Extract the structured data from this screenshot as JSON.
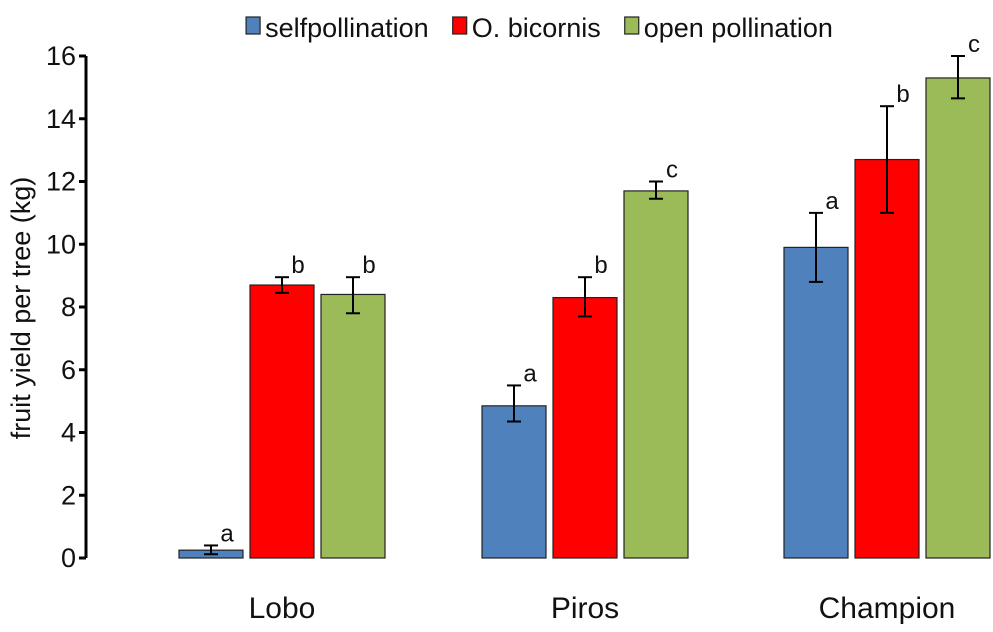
{
  "chart_data": {
    "type": "bar",
    "title": "",
    "xlabel": "",
    "ylabel": "fruit yield per tree (kg)",
    "ylim": [
      0,
      16
    ],
    "yticks": [
      0,
      2,
      4,
      6,
      8,
      10,
      12,
      14,
      16
    ],
    "grid": false,
    "legend_position": "top",
    "categories": [
      "Lobo",
      "Piros",
      "Champion"
    ],
    "series": [
      {
        "name": "selfpollination",
        "color": "#4f81bd",
        "values": [
          0.25,
          4.85,
          9.9
        ],
        "error_low": [
          0.12,
          4.35,
          8.8
        ],
        "error_high": [
          0.4,
          5.5,
          11.0
        ],
        "letters": [
          "a",
          "a",
          "a"
        ]
      },
      {
        "name": "O. bicornis",
        "color": "#ff0000",
        "values": [
          8.7,
          8.3,
          12.7
        ],
        "error_low": [
          8.45,
          7.7,
          11.0
        ],
        "error_high": [
          8.95,
          8.95,
          14.4
        ],
        "letters": [
          "b",
          "b",
          "b"
        ]
      },
      {
        "name": "open pollination",
        "color": "#9bbb59",
        "values": [
          8.4,
          11.7,
          15.3
        ],
        "error_low": [
          7.8,
          11.45,
          14.65
        ],
        "error_high": [
          8.95,
          12.0,
          16.0
        ],
        "letters": [
          "b",
          "c",
          "c"
        ]
      }
    ]
  }
}
